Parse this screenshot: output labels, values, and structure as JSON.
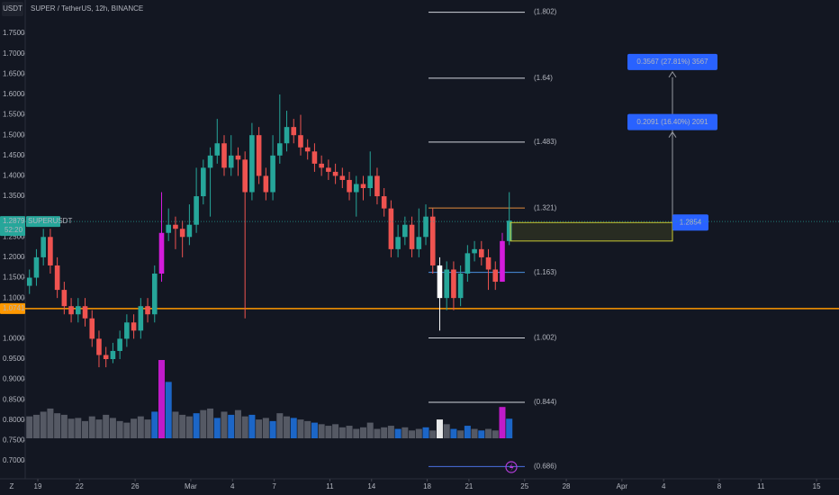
{
  "chart_data": {
    "type": "candlestick",
    "title": "SUPER / TetherUS, 12h, BINANCE",
    "currency": "USDT",
    "x": [
      -0.6,
      -0.1,
      0.4,
      0.9,
      1.4,
      1.9,
      2.4,
      2.9,
      3.4,
      3.9,
      4.4,
      4.9,
      5.4,
      5.9,
      6.4,
      6.9,
      7.4,
      7.9,
      8.4,
      8.9,
      9.4,
      9.9,
      10.4,
      10.9,
      11.4,
      11.9,
      12.4,
      12.9,
      13.4,
      13.9,
      14.4,
      14.9,
      15.4,
      15.9,
      16.4,
      16.9,
      17.4,
      17.9,
      18.4,
      18.9,
      19.4,
      19.9,
      20.4,
      20.9,
      21.4,
      21.9,
      22.4,
      22.9,
      23.4,
      23.9,
      24.4,
      24.9,
      25.4,
      25.9,
      26.4,
      26.9,
      27.4,
      27.9,
      28.4,
      28.9,
      29.4,
      29.9,
      30.4,
      30.9,
      31.4,
      31.9,
      32.4,
      32.9,
      33.4,
      33.9
    ],
    "open": [
      1.13,
      1.15,
      1.2,
      1.25,
      1.18,
      1.12,
      1.08,
      1.06,
      1.08,
      1.05,
      1.0,
      0.96,
      0.95,
      0.97,
      1.0,
      1.04,
      1.02,
      1.08,
      1.06,
      1.16,
      1.26,
      1.28,
      1.27,
      1.25,
      1.28,
      1.35,
      1.42,
      1.45,
      1.48,
      1.42,
      1.45,
      1.44,
      1.36,
      1.5,
      1.4,
      1.36,
      1.45,
      1.48,
      1.52,
      1.5,
      1.47,
      1.46,
      1.43,
      1.42,
      1.41,
      1.4,
      1.39,
      1.36,
      1.38,
      1.37,
      1.4,
      1.35,
      1.32,
      1.22,
      1.25,
      1.28,
      1.22,
      1.25,
      1.3,
      1.18,
      1.1,
      1.17,
      1.1,
      1.16,
      1.21,
      1.22,
      1.2,
      1.17,
      1.14,
      1.24
    ],
    "high": [
      1.17,
      1.22,
      1.27,
      1.27,
      1.2,
      1.14,
      1.1,
      1.1,
      1.1,
      1.07,
      1.02,
      0.98,
      0.99,
      1.02,
      1.06,
      1.06,
      1.1,
      1.1,
      1.18,
      1.36,
      1.32,
      1.3,
      1.29,
      1.33,
      1.42,
      1.44,
      1.47,
      1.54,
      1.5,
      1.5,
      1.47,
      1.46,
      1.53,
      1.52,
      1.42,
      1.5,
      1.6,
      1.56,
      1.54,
      1.55,
      1.49,
      1.48,
      1.45,
      1.44,
      1.43,
      1.42,
      1.41,
      1.4,
      1.4,
      1.46,
      1.42,
      1.37,
      1.34,
      1.28,
      1.3,
      1.3,
      1.32,
      1.33,
      1.32,
      1.2,
      1.19,
      1.19,
      1.18,
      1.23,
      1.24,
      1.24,
      1.22,
      1.19,
      1.26,
      1.36
    ],
    "low": [
      1.11,
      1.13,
      1.18,
      1.16,
      1.1,
      1.06,
      1.04,
      1.04,
      1.03,
      0.98,
      0.93,
      0.93,
      0.94,
      0.95,
      0.98,
      1.0,
      1.0,
      1.04,
      1.04,
      1.14,
      1.24,
      1.22,
      1.2,
      1.23,
      1.26,
      1.33,
      1.3,
      1.43,
      1.4,
      1.4,
      1.4,
      1.05,
      1.34,
      1.38,
      1.34,
      1.34,
      1.43,
      1.46,
      1.48,
      1.45,
      1.44,
      1.41,
      1.4,
      1.39,
      1.38,
      1.37,
      1.34,
      1.3,
      1.34,
      1.35,
      1.33,
      1.3,
      1.2,
      1.2,
      1.23,
      1.2,
      1.2,
      1.23,
      1.16,
      1.02,
      1.07,
      1.07,
      1.08,
      1.14,
      1.19,
      1.18,
      1.12,
      1.12,
      1.14,
      1.23
    ],
    "close": [
      1.15,
      1.2,
      1.25,
      1.18,
      1.12,
      1.08,
      1.06,
      1.08,
      1.05,
      1.0,
      0.96,
      0.95,
      0.97,
      1.0,
      1.04,
      1.02,
      1.08,
      1.06,
      1.16,
      1.26,
      1.28,
      1.27,
      1.25,
      1.28,
      1.35,
      1.42,
      1.45,
      1.48,
      1.42,
      1.45,
      1.44,
      1.36,
      1.5,
      1.4,
      1.36,
      1.45,
      1.48,
      1.52,
      1.5,
      1.47,
      1.46,
      1.43,
      1.42,
      1.41,
      1.4,
      1.39,
      1.36,
      1.38,
      1.37,
      1.4,
      1.35,
      1.32,
      1.22,
      1.25,
      1.28,
      1.22,
      1.25,
      1.3,
      1.18,
      1.1,
      1.17,
      1.1,
      1.16,
      1.21,
      1.22,
      1.2,
      1.17,
      1.14,
      1.24,
      1.29
    ],
    "colors": {
      "up": "#26a69a",
      "down": "#ef5350"
    },
    "highlights": [
      {
        "index": 19,
        "color": "#d41cdc"
      },
      {
        "index": 59,
        "color": "#ffffff"
      },
      {
        "index": 68,
        "color": "#d41cdc"
      }
    ],
    "volume": [
      28,
      30,
      34,
      38,
      32,
      30,
      25,
      26,
      22,
      28,
      24,
      30,
      26,
      22,
      20,
      25,
      28,
      24,
      34,
      100,
      72,
      34,
      30,
      28,
      32,
      36,
      38,
      26,
      34,
      30,
      36,
      28,
      30,
      24,
      26,
      22,
      32,
      28,
      26,
      24,
      22,
      20,
      18,
      16,
      18,
      14,
      16,
      12,
      14,
      20,
      12,
      14,
      16,
      12,
      14,
      10,
      12,
      14,
      10,
      24,
      18,
      12,
      10,
      16,
      12,
      10,
      12,
      10,
      40,
      25
    ],
    "volume_colors": [
      "#5d606b",
      "#5d606b",
      "#5d606b",
      "#5d606b",
      "#5d606b",
      "#5d606b",
      "#5d606b",
      "#5d606b",
      "#5d606b",
      "#5d606b",
      "#5d606b",
      "#5d606b",
      "#5d606b",
      "#5d606b",
      "#5d606b",
      "#5d606b",
      "#5d606b",
      "#5d606b",
      "#1e6fd9",
      "#d41cdc",
      "#1e6fd9",
      "#5d606b",
      "#5d606b",
      "#5d606b",
      "#1e6fd9",
      "#5d606b",
      "#5d606b",
      "#1e6fd9",
      "#5d606b",
      "#1e6fd9",
      "#5d606b",
      "#5d606b",
      "#1e6fd9",
      "#5d606b",
      "#5d606b",
      "#1e6fd9",
      "#5d606b",
      "#5d606b",
      "#1e6fd9",
      "#5d606b",
      "#5d606b",
      "#1e6fd9",
      "#5d606b",
      "#5d606b",
      "#5d606b",
      "#5d606b",
      "#5d606b",
      "#5d606b",
      "#5d606b",
      "#5d606b",
      "#5d606b",
      "#5d606b",
      "#5d606b",
      "#1e6fd9",
      "#5d606b",
      "#5d606b",
      "#5d606b",
      "#1e6fd9",
      "#5d606b",
      "#ffffff",
      "#5d606b",
      "#1e6fd9",
      "#5d606b",
      "#1e6fd9",
      "#5d606b",
      "#1e6fd9",
      "#5d606b",
      "#5d606b",
      "#d41cdc",
      "#1e6fd9"
    ],
    "vlim": [
      0,
      100
    ],
    "xlim": [
      -0.906,
      57.61
    ],
    "xticks": [
      {
        "value": 0,
        "label": "19"
      },
      {
        "value": 3,
        "label": "22"
      },
      {
        "value": 7,
        "label": "26"
      },
      {
        "value": 11,
        "label": "Mar"
      },
      {
        "value": 14,
        "label": "4"
      },
      {
        "value": 17,
        "label": "7"
      },
      {
        "value": 21,
        "label": "11"
      },
      {
        "value": 24,
        "label": "14"
      },
      {
        "value": 28,
        "label": "18"
      },
      {
        "value": 31,
        "label": "21"
      },
      {
        "value": 35,
        "label": "25"
      },
      {
        "value": 38,
        "label": "28"
      },
      {
        "value": 42,
        "label": "Apr"
      },
      {
        "value": 45,
        "label": "4"
      },
      {
        "value": 49,
        "label": "8"
      },
      {
        "value": 52,
        "label": "11"
      },
      {
        "value": 56,
        "label": "15"
      }
    ],
    "ylim": [
      0.656,
      1.832
    ],
    "yticks": [
      {
        "value": 1.75,
        "label": "1.7500"
      },
      {
        "value": 1.7,
        "label": "1.7000"
      },
      {
        "value": 1.65,
        "label": "1.6500"
      },
      {
        "value": 1.6,
        "label": "1.6000"
      },
      {
        "value": 1.55,
        "label": "1.5500"
      },
      {
        "value": 1.5,
        "label": "1.5000"
      },
      {
        "value": 1.45,
        "label": "1.4500"
      },
      {
        "value": 1.4,
        "label": "1.4000"
      },
      {
        "value": 1.35,
        "label": "1.3500"
      },
      {
        "value": 1.25,
        "label": "1.2500"
      },
      {
        "value": 1.2,
        "label": "1.2000"
      },
      {
        "value": 1.15,
        "label": "1.1500"
      },
      {
        "value": 1.1,
        "label": "1.1000"
      },
      {
        "value": 1.0,
        "label": "1.0000"
      },
      {
        "value": 0.95,
        "label": "0.9500"
      },
      {
        "value": 0.9,
        "label": "0.9000"
      },
      {
        "value": 0.85,
        "label": "0.8500"
      },
      {
        "value": 0.8,
        "label": "0.8000"
      },
      {
        "value": 0.75,
        "label": "0.7500"
      },
      {
        "value": 0.7,
        "label": "0.7000"
      }
    ],
    "last_price": {
      "value": 1.2879,
      "label": "1.2879",
      "countdown": "52:20",
      "ticker": "SUPERUSDT",
      "color": "#26a69a"
    },
    "support": {
      "value": 1.0741,
      "label": "1.0741",
      "color": "#ff9800"
    },
    "fib_levels": [
      {
        "value": 1.802,
        "label": "(1.802)",
        "color": "#d1d4dc"
      },
      {
        "value": 1.64,
        "label": "(1.64)",
        "color": "#d1d4dc"
      },
      {
        "value": 1.483,
        "label": "(1.483)",
        "color": "#d1d4dc"
      },
      {
        "value": 1.321,
        "label": "(1.321)",
        "color": "#e08a3c"
      },
      {
        "value": 1.163,
        "label": "(1.163)",
        "color": "#4a8fe0"
      },
      {
        "value": 1.002,
        "label": "(1.002)",
        "color": "#d1d4dc"
      },
      {
        "value": 0.844,
        "label": "(0.844)",
        "color": "#d1d4dc"
      },
      {
        "value": 0.686,
        "label": "(0.686)",
        "color": "#4a6fe0"
      }
    ],
    "position": {
      "entry": {
        "value": 1.2854,
        "label": "1.2854"
      },
      "stop": 1.24,
      "targets": [
        {
          "value": 0.2091,
          "label": "0.2091 (16.40%) 2091"
        },
        {
          "value": 0.3567,
          "label": "0.3567 (27.81%) 3567"
        }
      ]
    }
  }
}
